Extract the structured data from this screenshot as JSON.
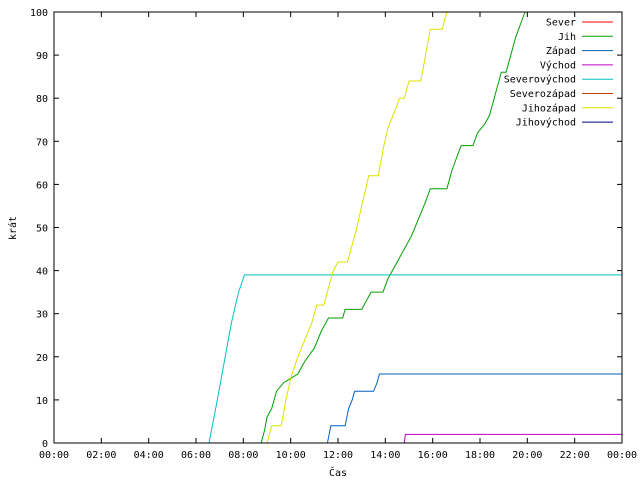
{
  "chart_data": {
    "type": "line",
    "xlabel": "Čas",
    "ylabel": "krát",
    "xlim": [
      0,
      24
    ],
    "ylim": [
      0,
      100
    ],
    "x_ticks": [
      {
        "value": 0,
        "label": "00:00"
      },
      {
        "value": 2,
        "label": "02:00"
      },
      {
        "value": 4,
        "label": "04:00"
      },
      {
        "value": 6,
        "label": "06:00"
      },
      {
        "value": 8,
        "label": "08:00"
      },
      {
        "value": 10,
        "label": "10:00"
      },
      {
        "value": 12,
        "label": "12:00"
      },
      {
        "value": 14,
        "label": "14:00"
      },
      {
        "value": 16,
        "label": "16:00"
      },
      {
        "value": 18,
        "label": "18:00"
      },
      {
        "value": 20,
        "label": "20:00"
      },
      {
        "value": 22,
        "label": "22:00"
      },
      {
        "value": 24,
        "label": "00:00"
      }
    ],
    "y_ticks": [
      0,
      10,
      20,
      30,
      40,
      50,
      60,
      70,
      80,
      90,
      100
    ],
    "legend_position": "top-right",
    "series": [
      {
        "name": "Sever",
        "color": "#ff0000",
        "points": []
      },
      {
        "name": "Jih",
        "color": "#00a000",
        "points": [
          [
            0,
            0
          ],
          [
            8.75,
            0
          ],
          [
            8.9,
            3
          ],
          [
            9.0,
            6
          ],
          [
            9.2,
            8
          ],
          [
            9.4,
            12
          ],
          [
            9.7,
            14
          ],
          [
            10.0,
            15
          ],
          [
            10.3,
            16
          ],
          [
            10.6,
            19
          ],
          [
            11.0,
            22
          ],
          [
            11.3,
            26
          ],
          [
            11.6,
            29
          ],
          [
            12.2,
            29
          ],
          [
            12.3,
            31
          ],
          [
            13.0,
            31
          ],
          [
            13.2,
            33
          ],
          [
            13.4,
            35
          ],
          [
            13.9,
            35
          ],
          [
            14.1,
            38
          ],
          [
            14.3,
            40
          ],
          [
            14.5,
            42
          ],
          [
            14.8,
            45
          ],
          [
            15.1,
            48
          ],
          [
            15.4,
            52
          ],
          [
            15.7,
            56
          ],
          [
            15.9,
            59
          ],
          [
            16.6,
            59
          ],
          [
            16.8,
            63
          ],
          [
            17.0,
            66
          ],
          [
            17.2,
            69
          ],
          [
            17.7,
            69
          ],
          [
            17.9,
            72
          ],
          [
            18.2,
            74
          ],
          [
            18.4,
            76
          ],
          [
            18.6,
            80
          ],
          [
            18.9,
            86
          ],
          [
            19.1,
            86
          ],
          [
            19.3,
            90
          ],
          [
            19.5,
            94
          ],
          [
            19.7,
            97
          ],
          [
            19.9,
            100
          ]
        ]
      },
      {
        "name": "Západ",
        "color": "#0060c0",
        "points": [
          [
            0,
            0
          ],
          [
            11.55,
            0
          ],
          [
            11.7,
            4
          ],
          [
            12.3,
            4
          ],
          [
            12.45,
            8
          ],
          [
            12.6,
            10
          ],
          [
            12.7,
            12
          ],
          [
            13.5,
            12
          ],
          [
            13.65,
            14
          ],
          [
            13.75,
            16
          ],
          [
            24,
            16
          ]
        ]
      },
      {
        "name": "Východ",
        "color": "#c000c0",
        "points": [
          [
            0,
            0
          ],
          [
            14.8,
            0
          ],
          [
            14.85,
            2
          ],
          [
            24,
            2
          ]
        ]
      },
      {
        "name": "Severovýchod",
        "color": "#00c0c0",
        "points": [
          [
            0,
            0
          ],
          [
            6.55,
            0
          ],
          [
            6.9,
            10
          ],
          [
            7.2,
            19
          ],
          [
            7.5,
            28
          ],
          [
            7.8,
            35
          ],
          [
            8.05,
            39
          ],
          [
            24,
            39
          ]
        ]
      },
      {
        "name": "Severozápad",
        "color": "#c04000",
        "points": []
      },
      {
        "name": "Jihozápad",
        "color": "#e0e000",
        "points": [
          [
            0,
            0
          ],
          [
            9.0,
            0
          ],
          [
            9.2,
            4
          ],
          [
            9.6,
            4
          ],
          [
            9.8,
            10
          ],
          [
            10.0,
            15
          ],
          [
            10.3,
            20
          ],
          [
            10.6,
            24
          ],
          [
            10.9,
            28
          ],
          [
            11.1,
            32
          ],
          [
            11.4,
            32
          ],
          [
            11.6,
            36
          ],
          [
            11.8,
            40
          ],
          [
            12.0,
            42
          ],
          [
            12.4,
            42
          ],
          [
            12.6,
            46
          ],
          [
            12.8,
            50
          ],
          [
            13.0,
            55
          ],
          [
            13.3,
            62
          ],
          [
            13.7,
            62
          ],
          [
            13.9,
            68
          ],
          [
            14.1,
            73
          ],
          [
            14.4,
            77
          ],
          [
            14.6,
            80
          ],
          [
            14.8,
            80
          ],
          [
            15.0,
            84
          ],
          [
            15.5,
            84
          ],
          [
            15.7,
            90
          ],
          [
            15.9,
            96
          ],
          [
            16.4,
            96
          ],
          [
            16.6,
            100
          ]
        ]
      },
      {
        "name": "Jihovýchod",
        "color": "#000080",
        "points": []
      }
    ]
  }
}
